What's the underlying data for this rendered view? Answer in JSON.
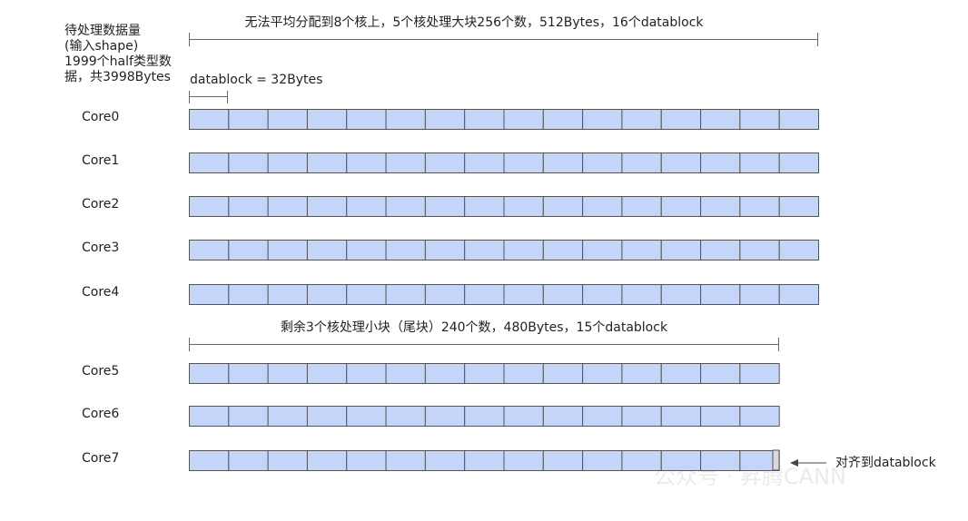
{
  "input_label": [
    "待处理数据量",
    "(输入shape)",
    "1999个half类型数",
    "据，共3998Bytes"
  ],
  "big_block_note": "无法平均分配到8个核上，5个核处理大块256个数，512Bytes，16个datablock",
  "datablock_note": "datablock = 32Bytes",
  "tail_block_note": "剩余3个核处理小块（尾块）240个数，480Bytes，15个datablock",
  "align_note": "对齐到datablock",
  "watermark": "公众号 · 昇腾CANN",
  "cores": [
    {
      "label": "Core0",
      "blocks": 16
    },
    {
      "label": "Core1",
      "blocks": 16
    },
    {
      "label": "Core2",
      "blocks": 16
    },
    {
      "label": "Core3",
      "blocks": 16
    },
    {
      "label": "Core4",
      "blocks": 16
    },
    {
      "label": "Core5",
      "blocks": 15
    },
    {
      "label": "Core6",
      "blocks": 15
    },
    {
      "label": "Core7",
      "blocks": 15
    }
  ]
}
